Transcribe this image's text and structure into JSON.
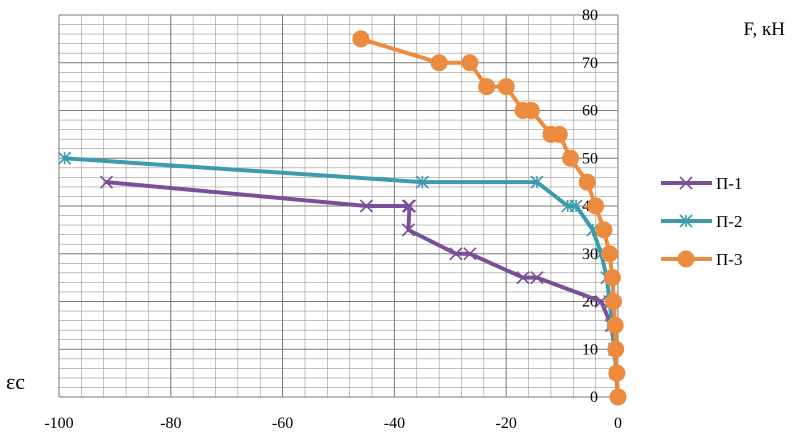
{
  "chart_data": {
    "type": "line",
    "y_axis_label": "F, кН",
    "x_axis_label": "εc",
    "x_ticks": [
      -100,
      -80,
      -60,
      -40,
      -20,
      0
    ],
    "y_ticks": [
      0,
      10,
      20,
      30,
      40,
      50,
      60,
      70,
      80
    ],
    "xlim": [
      -100,
      0
    ],
    "ylim": [
      0,
      80
    ],
    "grid": true,
    "legend_position": "right",
    "series": [
      {
        "name": "П-1",
        "color": "#7a4f9a",
        "marker": "x",
        "points": [
          [
            0,
            0
          ],
          [
            -0.3,
            5
          ],
          [
            -0.6,
            10
          ],
          [
            -1.2,
            15
          ],
          [
            -3,
            20
          ],
          [
            -14.5,
            25
          ],
          [
            -17,
            25
          ],
          [
            -26.5,
            30
          ],
          [
            -29,
            30
          ],
          [
            -37.5,
            35
          ],
          [
            -37.3,
            40
          ],
          [
            -37.5,
            40
          ],
          [
            -45,
            40
          ],
          [
            -91.5,
            45
          ]
        ]
      },
      {
        "name": "П-2",
        "color": "#3c9cad",
        "marker": "asterisk",
        "points": [
          [
            0,
            0
          ],
          [
            -0.3,
            5
          ],
          [
            -0.6,
            10
          ],
          [
            -1,
            15
          ],
          [
            -1.5,
            20
          ],
          [
            -2,
            25
          ],
          [
            -3,
            30
          ],
          [
            -4.5,
            35
          ],
          [
            -7.5,
            40
          ],
          [
            -9,
            40
          ],
          [
            -14.5,
            45
          ],
          [
            -35,
            45
          ],
          [
            -99,
            50
          ]
        ]
      },
      {
        "name": "П-3",
        "color": "#ec8a3e",
        "marker": "circle",
        "points": [
          [
            0,
            0
          ],
          [
            -0.2,
            5
          ],
          [
            -0.4,
            10
          ],
          [
            -0.5,
            15
          ],
          [
            -0.8,
            20
          ],
          [
            -1,
            25
          ],
          [
            -1.5,
            30
          ],
          [
            -2.5,
            35
          ],
          [
            -4,
            40
          ],
          [
            -5.5,
            45
          ],
          [
            -8.5,
            50
          ],
          [
            -10.5,
            55
          ],
          [
            -12,
            55
          ],
          [
            -15.5,
            60
          ],
          [
            -17,
            60
          ],
          [
            -20,
            65
          ],
          [
            -23.5,
            65
          ],
          [
            -26.5,
            70
          ],
          [
            -32,
            70
          ],
          [
            -46,
            75
          ]
        ]
      }
    ]
  }
}
